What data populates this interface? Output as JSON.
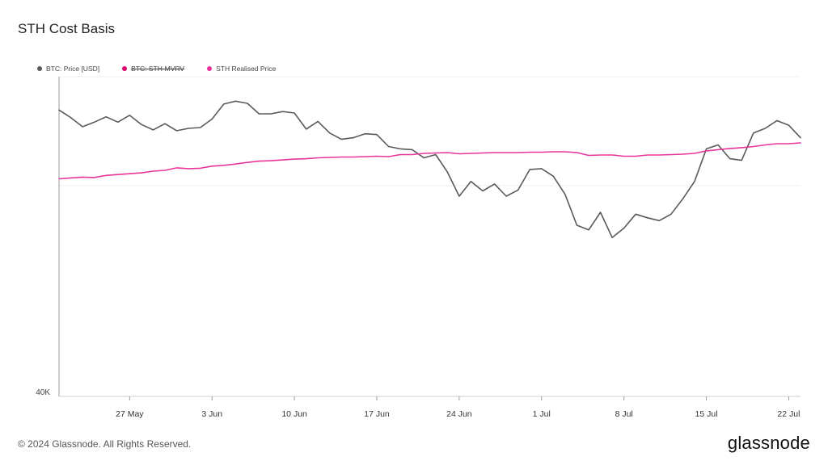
{
  "title": "STH Cost Basis",
  "legend": [
    {
      "label": "BTC: Price [USD]",
      "color": "#5a5a5a",
      "enabled": true
    },
    {
      "label": "BTC: STH-MVRV",
      "color": "#e0006f",
      "enabled": false
    },
    {
      "label": "STH Realised Price",
      "color": "#e8349a",
      "enabled": true
    }
  ],
  "footer": {
    "copyright": "© 2024 Glassnode. All Rights Reserved.",
    "brand": "glassnode"
  },
  "chart_data": {
    "type": "line",
    "title": "STH Cost Basis",
    "x_tick_labels": [
      "27 May",
      "3 Jun",
      "10 Jun",
      "17 Jun",
      "24 Jun",
      "1 Jul",
      "8 Jul",
      "15 Jul",
      "22 Jul"
    ],
    "x_tick_days": [
      6,
      13,
      20,
      27,
      34,
      41,
      48,
      55,
      62
    ],
    "x_range_days": [
      0,
      63
    ],
    "y_tick_labels": [
      "40K"
    ],
    "y_scale": "log",
    "y_range": [
      40000,
      74000
    ],
    "grid": {
      "horizontal": true,
      "vertical": false
    },
    "legend_position": "top-left",
    "series": [
      {
        "name": "BTC: Price [USD]",
        "color": "#5a5a5a",
        "x_days": [
          0,
          1,
          2,
          3,
          4,
          5,
          6,
          7,
          8,
          9,
          10,
          11,
          12,
          13,
          14,
          15,
          16,
          17,
          18,
          19,
          20,
          21,
          22,
          23,
          24,
          25,
          26,
          27,
          28,
          29,
          30,
          31,
          32,
          33,
          34,
          35,
          36,
          37,
          38,
          39,
          40,
          41,
          42,
          43,
          44,
          45,
          46,
          47,
          48,
          49,
          50,
          51,
          52,
          53,
          54,
          55,
          56,
          57,
          58,
          59,
          60,
          61,
          62,
          63
        ],
        "values": [
          69400,
          68400,
          67200,
          67800,
          68500,
          67800,
          68700,
          67500,
          66800,
          67600,
          66700,
          67000,
          67100,
          68200,
          70200,
          70600,
          70300,
          68900,
          68900,
          69200,
          69000,
          66900,
          67900,
          66400,
          65600,
          65800,
          66300,
          66200,
          64700,
          64400,
          64300,
          63300,
          63700,
          61600,
          58800,
          60500,
          59400,
          60200,
          58800,
          59500,
          61900,
          62000,
          61100,
          59000,
          55600,
          55100,
          57000,
          54300,
          55300,
          56800,
          56400,
          56100,
          56800,
          58500,
          60500,
          64400,
          64900,
          63200,
          63000,
          66400,
          67000,
          68000,
          67400,
          65800
        ]
      },
      {
        "name": "STH Realised Price",
        "color": "#e8349a",
        "x_days": [
          0,
          1,
          2,
          3,
          4,
          5,
          6,
          7,
          8,
          9,
          10,
          11,
          12,
          13,
          14,
          15,
          16,
          17,
          18,
          19,
          20,
          21,
          22,
          23,
          24,
          25,
          26,
          27,
          28,
          29,
          30,
          31,
          32,
          33,
          34,
          35,
          36,
          37,
          38,
          39,
          40,
          41,
          42,
          43,
          44,
          45,
          46,
          47,
          48,
          49,
          50,
          51,
          52,
          53,
          54,
          55,
          56,
          57,
          58,
          59,
          60,
          61,
          62,
          63
        ],
        "values": [
          60800,
          60900,
          61000,
          60950,
          61200,
          61300,
          61400,
          61500,
          61700,
          61800,
          62100,
          62000,
          62050,
          62300,
          62400,
          62550,
          62750,
          62900,
          62950,
          63050,
          63150,
          63200,
          63300,
          63350,
          63400,
          63400,
          63450,
          63500,
          63450,
          63700,
          63700,
          63850,
          63900,
          63950,
          63800,
          63850,
          63900,
          63950,
          63950,
          63950,
          64000,
          64000,
          64050,
          64050,
          63950,
          63600,
          63650,
          63650,
          63500,
          63500,
          63650,
          63650,
          63700,
          63750,
          63850,
          64150,
          64300,
          64450,
          64550,
          64700,
          64900,
          65050,
          65050,
          65150
        ]
      }
    ]
  }
}
